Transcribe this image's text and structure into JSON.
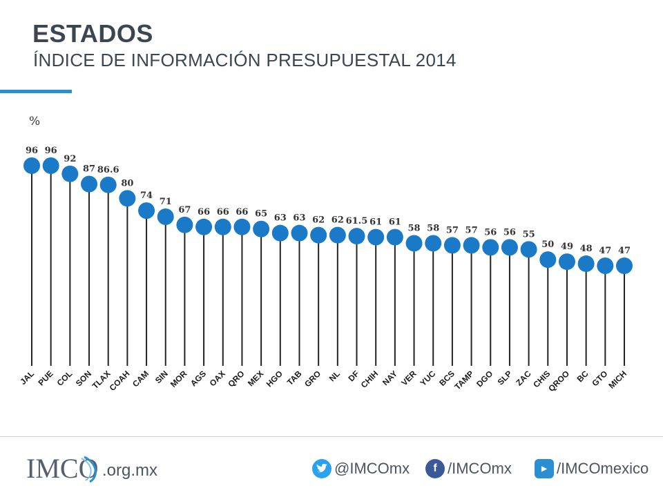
{
  "header": {
    "title": "ESTADOS",
    "subtitle": "ÍNDICE DE INFORMACIÓN PRESUPUESTAL 2014"
  },
  "chart_data": {
    "type": "lollipop",
    "unit_label": "%",
    "categories": [
      "JAL",
      "PUE",
      "COL",
      "SON",
      "TLAX",
      "COAH",
      "CAM",
      "SIN",
      "MOR",
      "AGS",
      "OAX",
      "QRO",
      "MEX",
      "HGO",
      "TAB",
      "GRO",
      "NL",
      "DF",
      "CHIH",
      "NAY",
      "VER",
      "YUC",
      "BCS",
      "TAMP",
      "DGO",
      "SLP",
      "ZAC",
      "CHIS",
      "QROO",
      "BC",
      "GTO",
      "MICH"
    ],
    "values": [
      96,
      96,
      92,
      87,
      86.6,
      80,
      74,
      71,
      67,
      66,
      66,
      66,
      65,
      63,
      63,
      62,
      62,
      61.5,
      61,
      61,
      58,
      58,
      57,
      57,
      56,
      56,
      55,
      50,
      49,
      48,
      47,
      47
    ],
    "value_labels": [
      "96",
      "96",
      "92",
      "87",
      "86.6",
      "80",
      "74",
      "71",
      "67",
      "66",
      "66",
      "66",
      "65",
      "63",
      "63",
      "62",
      "62",
      "61.5",
      "61",
      "61",
      "58",
      "58",
      "57",
      "57",
      "56",
      "56",
      "55",
      "50",
      "49",
      "48",
      "47",
      "47"
    ],
    "colors": {
      "marker": "#1a7ac7",
      "stem": "#222222",
      "accent": "#2a8fd1"
    },
    "grid": false,
    "legend": "none"
  },
  "footer": {
    "logo_text": "IMCO",
    "domain": ".org.mx",
    "social": [
      {
        "icon": "twitter-icon",
        "text": "@IMCOmx",
        "color": "#2aa3ef"
      },
      {
        "icon": "facebook-icon",
        "text": "/IMCOmx",
        "color": "#3b5998"
      },
      {
        "icon": "youtube-icon",
        "text": "/IMCOmexico",
        "color": "#2a8fd1"
      }
    ]
  }
}
